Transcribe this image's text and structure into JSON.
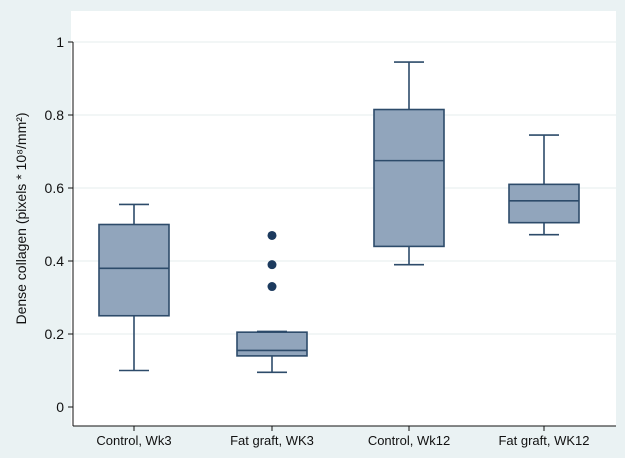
{
  "chart_data": {
    "type": "box",
    "ylabel": "Dense collagen (pixels * 10⁸/mm²)",
    "ylim": [
      0,
      1
    ],
    "yticks": [
      0,
      0.2,
      0.4,
      0.6,
      0.8,
      1
    ],
    "ytick_labels": [
      "0",
      "0.2",
      "0.4",
      "0.6",
      "0.8",
      "1"
    ],
    "grid": true,
    "categories": [
      "Control, Wk3",
      "Fat graft, WK3",
      "Control, Wk12",
      "Fat graft, WK12"
    ],
    "boxes": [
      {
        "category": "Control, Wk3",
        "whisker_low": 0.1,
        "q1": 0.25,
        "median": 0.38,
        "q3": 0.5,
        "whisker_high": 0.555,
        "outliers": []
      },
      {
        "category": "Fat graft, WK3",
        "whisker_low": 0.095,
        "q1": 0.14,
        "median": 0.155,
        "q3": 0.205,
        "whisker_high": 0.207,
        "outliers": [
          0.33,
          0.39,
          0.47
        ]
      },
      {
        "category": "Control, Wk12",
        "whisker_low": 0.39,
        "q1": 0.44,
        "median": 0.675,
        "q3": 0.815,
        "whisker_high": 0.945,
        "outliers": []
      },
      {
        "category": "Fat graft, WK12",
        "whisker_low": 0.472,
        "q1": 0.505,
        "median": 0.565,
        "q3": 0.61,
        "whisker_high": 0.745,
        "outliers": []
      }
    ],
    "colors": {
      "box_fill": "#91a5bc",
      "box_stroke": "#2d4b6a",
      "outlier": "#1c3a5e",
      "grid": "#eef3f4",
      "plot_bg": "#ffffff",
      "page_bg": "#eaf2f3"
    }
  }
}
